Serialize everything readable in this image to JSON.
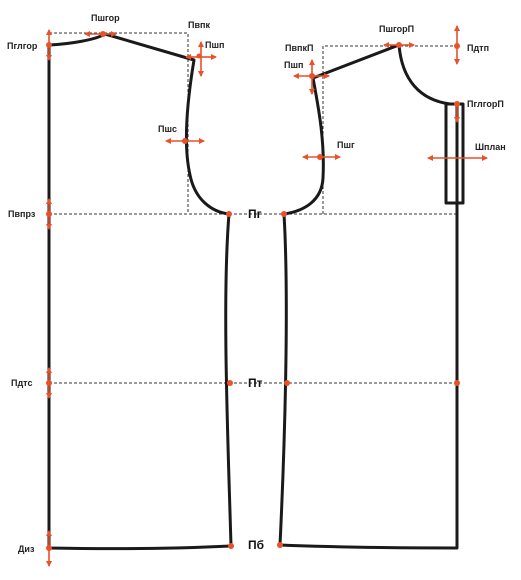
{
  "colors": {
    "outline": "#1a1a1a",
    "guide": "#333333",
    "accent": "#e8512a",
    "background": "#ffffff"
  },
  "labels": {
    "back_neck_width": "Пшгор",
    "back_neck_depth": "Пглгор",
    "back_shoulder_point_height": "Пвпк",
    "back_shoulder_length": "Пшп",
    "back_width": "Пшс",
    "back_armhole_depth": "Пвпрз",
    "back_waist_length": "Пдтс",
    "product_length": "Диз",
    "bust_line": "Пг",
    "waist_line": "Пт",
    "hip_line": "Пб",
    "front_shoulder_point_height": "ПвпкП",
    "front_shoulder_length": "Пшп",
    "front_neck_width": "ПшгорП",
    "front_waist_length": "Пдтп",
    "front_neck_depth": "ПглгорП",
    "chest_width": "Пшг",
    "placket_width": "Шплан"
  }
}
